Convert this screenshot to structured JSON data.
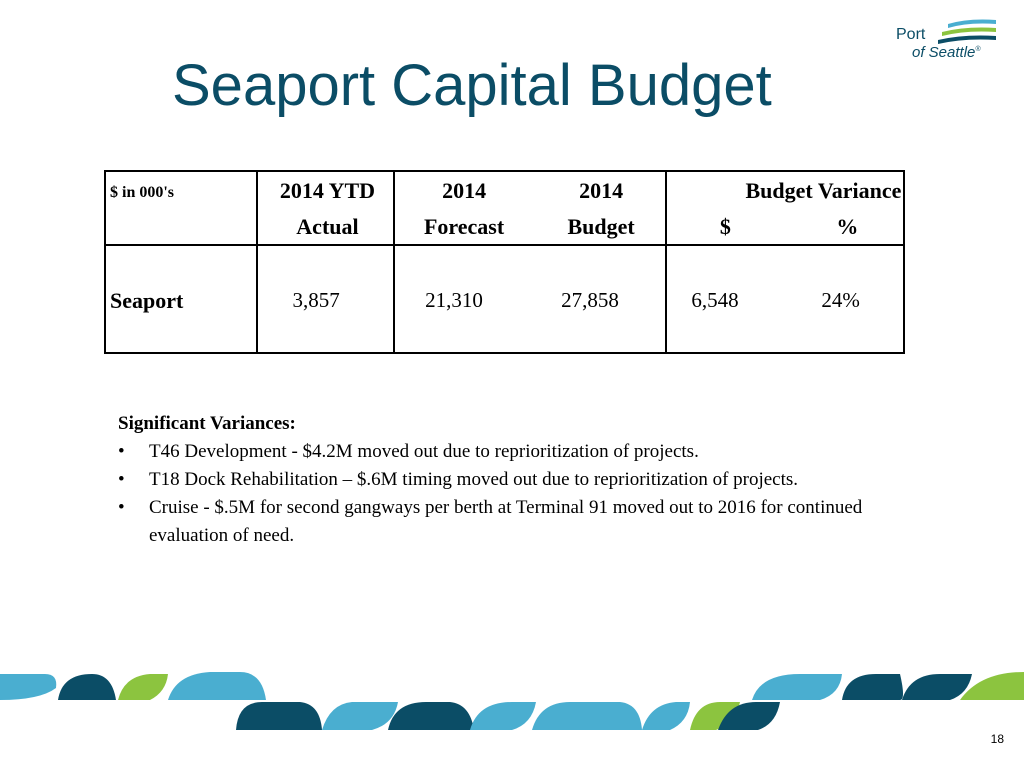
{
  "slide": {
    "title": "Seaport Capital Budget",
    "page_number": "18"
  },
  "logo": {
    "line1": "Port",
    "line2": "of Seattle",
    "trademark": "®",
    "colors": {
      "text": "#0b4d66",
      "stripe_blue": "#4aaed0",
      "stripe_green": "#8cc43f",
      "stripe_navy": "#0b4d66"
    }
  },
  "table": {
    "units_label": "$  in 000's",
    "headers": {
      "ytd_line1": "2014 YTD",
      "ytd_line2": "Actual",
      "forecast_line1": "2014",
      "forecast_line2": "Forecast",
      "budget_line1": "2014",
      "budget_line2": "Budget",
      "variance_line1": "Budget Variance",
      "variance_dollar": "$",
      "variance_pct": "%"
    },
    "rows": [
      {
        "label": "Seaport",
        "ytd_actual": "3,857",
        "forecast": "21,310",
        "budget": "27,858",
        "variance_dollar": "6,548",
        "variance_pct": "24%"
      }
    ]
  },
  "notes": {
    "heading": "Significant Variances:",
    "bullet_char": "•",
    "items": [
      "T46 Development - $4.2M moved out due to reprioritization of projects.",
      "T18 Dock Rehabilitation – $.6M timing moved out due to reprioritization of projects.",
      "Cruise - $.5M for second gangways per berth at Terminal 91 moved out to 2016 for continued evaluation of need."
    ]
  },
  "footer": {
    "colors": {
      "navy": "#0b4d66",
      "blue": "#4aaed0",
      "green": "#8cc43f"
    }
  }
}
